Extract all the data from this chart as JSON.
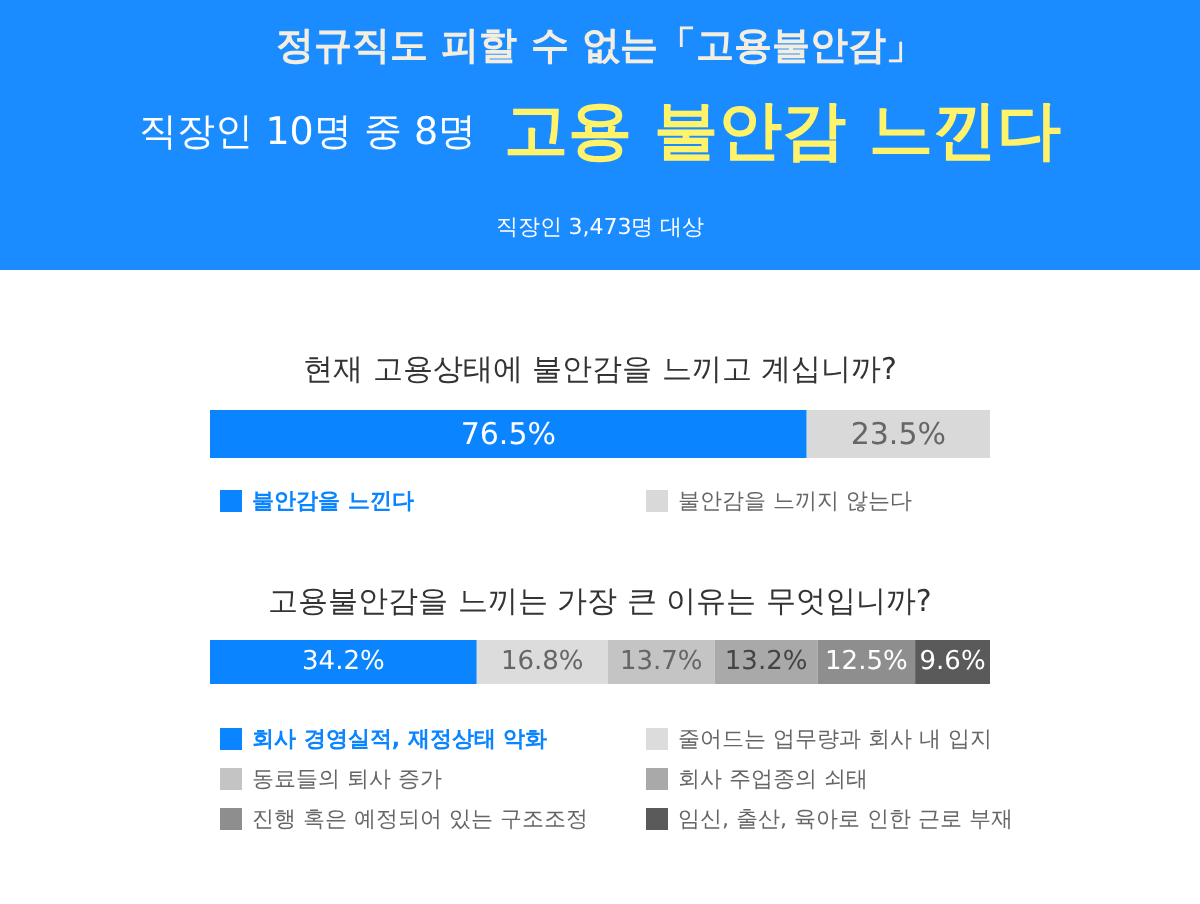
{
  "chart_data": [
    {
      "type": "other",
      "title": "정규직도 피할 수 없는「고용불안감」",
      "subtitle": "직장인 10명 중 8명",
      "annotations": [
        "고용 불안감 느낀다",
        "직장인 3,473명 대상"
      ]
    },
    {
      "type": "bar",
      "orientation": "horizontal",
      "stacked": true,
      "title": "현재 고용상태에 불안감을 느끼고 계십니까?",
      "categories": [
        null
      ],
      "legend": "bottom",
      "series": [
        {
          "name": "불안감을 느낀다",
          "color": "#0a84ff",
          "values": [
            76.5
          ],
          "value_labels": [
            "76.5%"
          ]
        },
        {
          "name": "불안감을 느끼지 않는다",
          "color": "#d9d9d9",
          "values": [
            23.5
          ],
          "value_labels": [
            "23.5%"
          ]
        }
      ]
    },
    {
      "type": "bar",
      "orientation": "horizontal",
      "stacked": true,
      "title": "고용불안감을 느끼는 가장 큰 이유는 무엇입니까?",
      "categories": [
        null
      ],
      "legend": "bottom",
      "series": [
        {
          "name": "회사 경영실적, 재정상태 악화",
          "color": "#0a84ff",
          "values": [
            34.2
          ],
          "value_labels": [
            "34.2%"
          ]
        },
        {
          "name": "줄어드는 업무량과 회사 내 입지",
          "color": "#dcdcdc",
          "values": [
            16.8
          ],
          "value_labels": [
            "16.8%"
          ]
        },
        {
          "name": "동료들의 퇴사 증가",
          "color": "#c4c4c4",
          "values": [
            13.7
          ],
          "value_labels": [
            "13.7%"
          ]
        },
        {
          "name": "회사 주업종의 쇠태",
          "color": "#a9a9a9",
          "values": [
            13.2
          ],
          "value_labels": [
            "13.2%"
          ]
        },
        {
          "name": "진행 혹은 예정되어 있는 구조조정",
          "color": "#8e8e8e",
          "values": [
            12.5
          ],
          "value_labels": [
            "12.5%"
          ]
        },
        {
          "name": "임신, 출산, 육아로 인한 근로 부재",
          "color": "#5a5a5a",
          "values": [
            9.6
          ],
          "value_labels": [
            "9.6%"
          ]
        }
      ]
    }
  ]
}
